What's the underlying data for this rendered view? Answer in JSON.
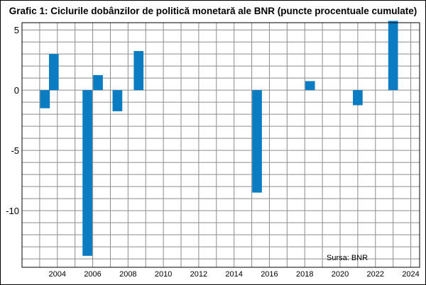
{
  "chart_data": {
    "type": "bar",
    "title": "Grafic 1: Ciclurile dobânzilor de politică monetară ale BNR (puncte procentuale cumulate)",
    "source_note": "Sursa: BNR",
    "xlabel": "",
    "ylabel": "",
    "xlim": [
      2002.0,
      2024.5
    ],
    "ylim": [
      -14.7,
      5.6
    ],
    "x_ticks": [
      2004,
      2006,
      2008,
      2010,
      2012,
      2014,
      2016,
      2018,
      2020,
      2022,
      2024
    ],
    "y_ticks": [
      5,
      0,
      -5,
      -10
    ],
    "grid": true,
    "legend": "none",
    "bar_color": "#0a7cc2",
    "x": [
      2003.3,
      2003.8,
      2005.7,
      2006.3,
      2007.4,
      2008.6,
      2015.3,
      2018.3,
      2021.0,
      2023.0
    ],
    "values": [
      -1.5,
      3.0,
      -13.75,
      1.25,
      -1.75,
      3.25,
      -8.5,
      0.75,
      -1.25,
      5.75
    ]
  }
}
